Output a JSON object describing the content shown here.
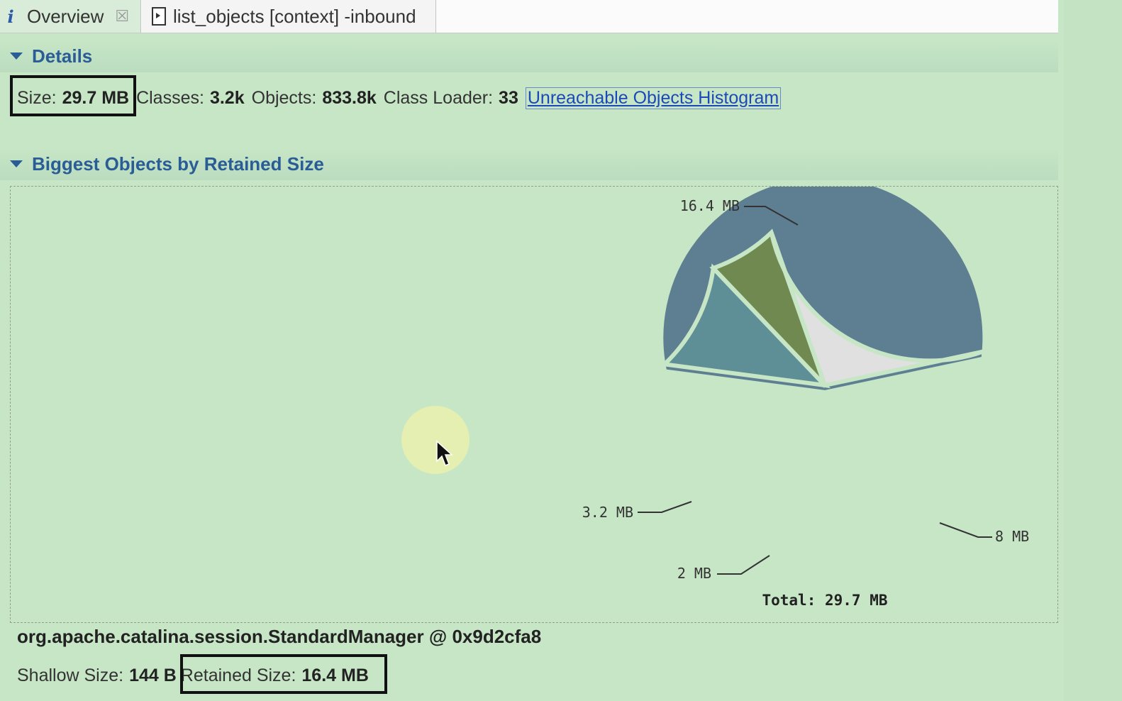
{
  "tabs": [
    {
      "label": "Overview",
      "closable": true,
      "icon": "info-icon"
    },
    {
      "label": "list_objects [context] -inbound",
      "icon": "document-icon"
    }
  ],
  "details": {
    "header": "Details",
    "size_label": "Size:",
    "size_value": "29.7 MB",
    "classes_label": "Classes:",
    "classes_value": "3.2k",
    "objects_label": "Objects:",
    "objects_value": "833.8k",
    "classloader_label": "Class Loader:",
    "classloader_value": "33",
    "histogram_link": "Unreachable Objects Histogram"
  },
  "biggest": {
    "header": "Biggest Objects by Retained Size"
  },
  "chart_data": {
    "type": "pie",
    "total_label": "Total: 29.7 MB",
    "slices": [
      {
        "label": "16.4 MB",
        "value": 16.4,
        "color": "#5e7f92"
      },
      {
        "label": "3.2 MB",
        "value": 3.2,
        "color": "#5f8f96"
      },
      {
        "label": "2 MB",
        "value": 2.0,
        "color": "#6f8950"
      },
      {
        "label": "8 MB",
        "value": 8.0,
        "color": "#e0e0e0"
      }
    ]
  },
  "selected_object": {
    "name": "org.apache.catalina.session.StandardManager @ 0x9d2cfa8",
    "shallow_label": "Shallow Size:",
    "shallow_value": "144 B",
    "retained_label": "Retained Size:",
    "retained_value": "16.4 MB"
  },
  "colors": {
    "background": "#c6e6c6",
    "header_text": "#2a5c96",
    "link": "#1d49b8"
  }
}
